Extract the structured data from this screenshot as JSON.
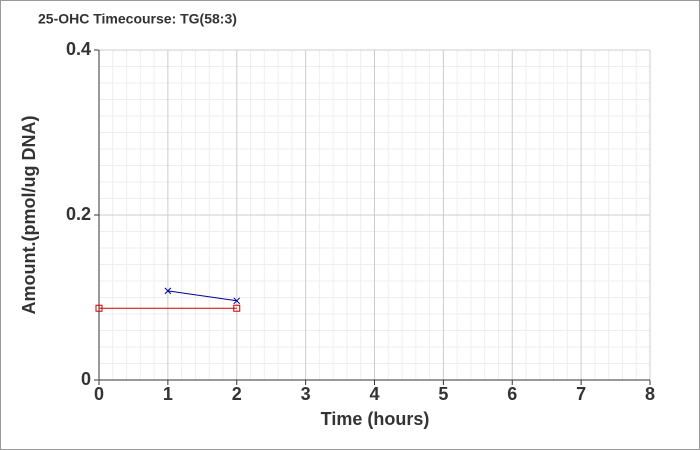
{
  "chart_data": {
    "type": "line",
    "title": "25-OHC Timecourse: TG(58:3)",
    "x_label": "Time (hours)",
    "y_label": "Amount.(pmol/ug DNA)",
    "xlim": [
      0,
      8
    ],
    "xticks": [
      0,
      1,
      2,
      3,
      4,
      5,
      6,
      7,
      8
    ],
    "ylim": [
      0,
      0.4
    ],
    "yticks": [
      0,
      0.2,
      0.4
    ],
    "grid": true,
    "series": [
      {
        "color": "#cc0000",
        "marker": "square",
        "x": [
          0,
          2
        ],
        "values": [
          0.087,
          0.087
        ]
      },
      {
        "color": "#000099",
        "marker": "x",
        "x": [
          1,
          2
        ],
        "values": [
          0.108,
          0.096
        ]
      }
    ]
  }
}
